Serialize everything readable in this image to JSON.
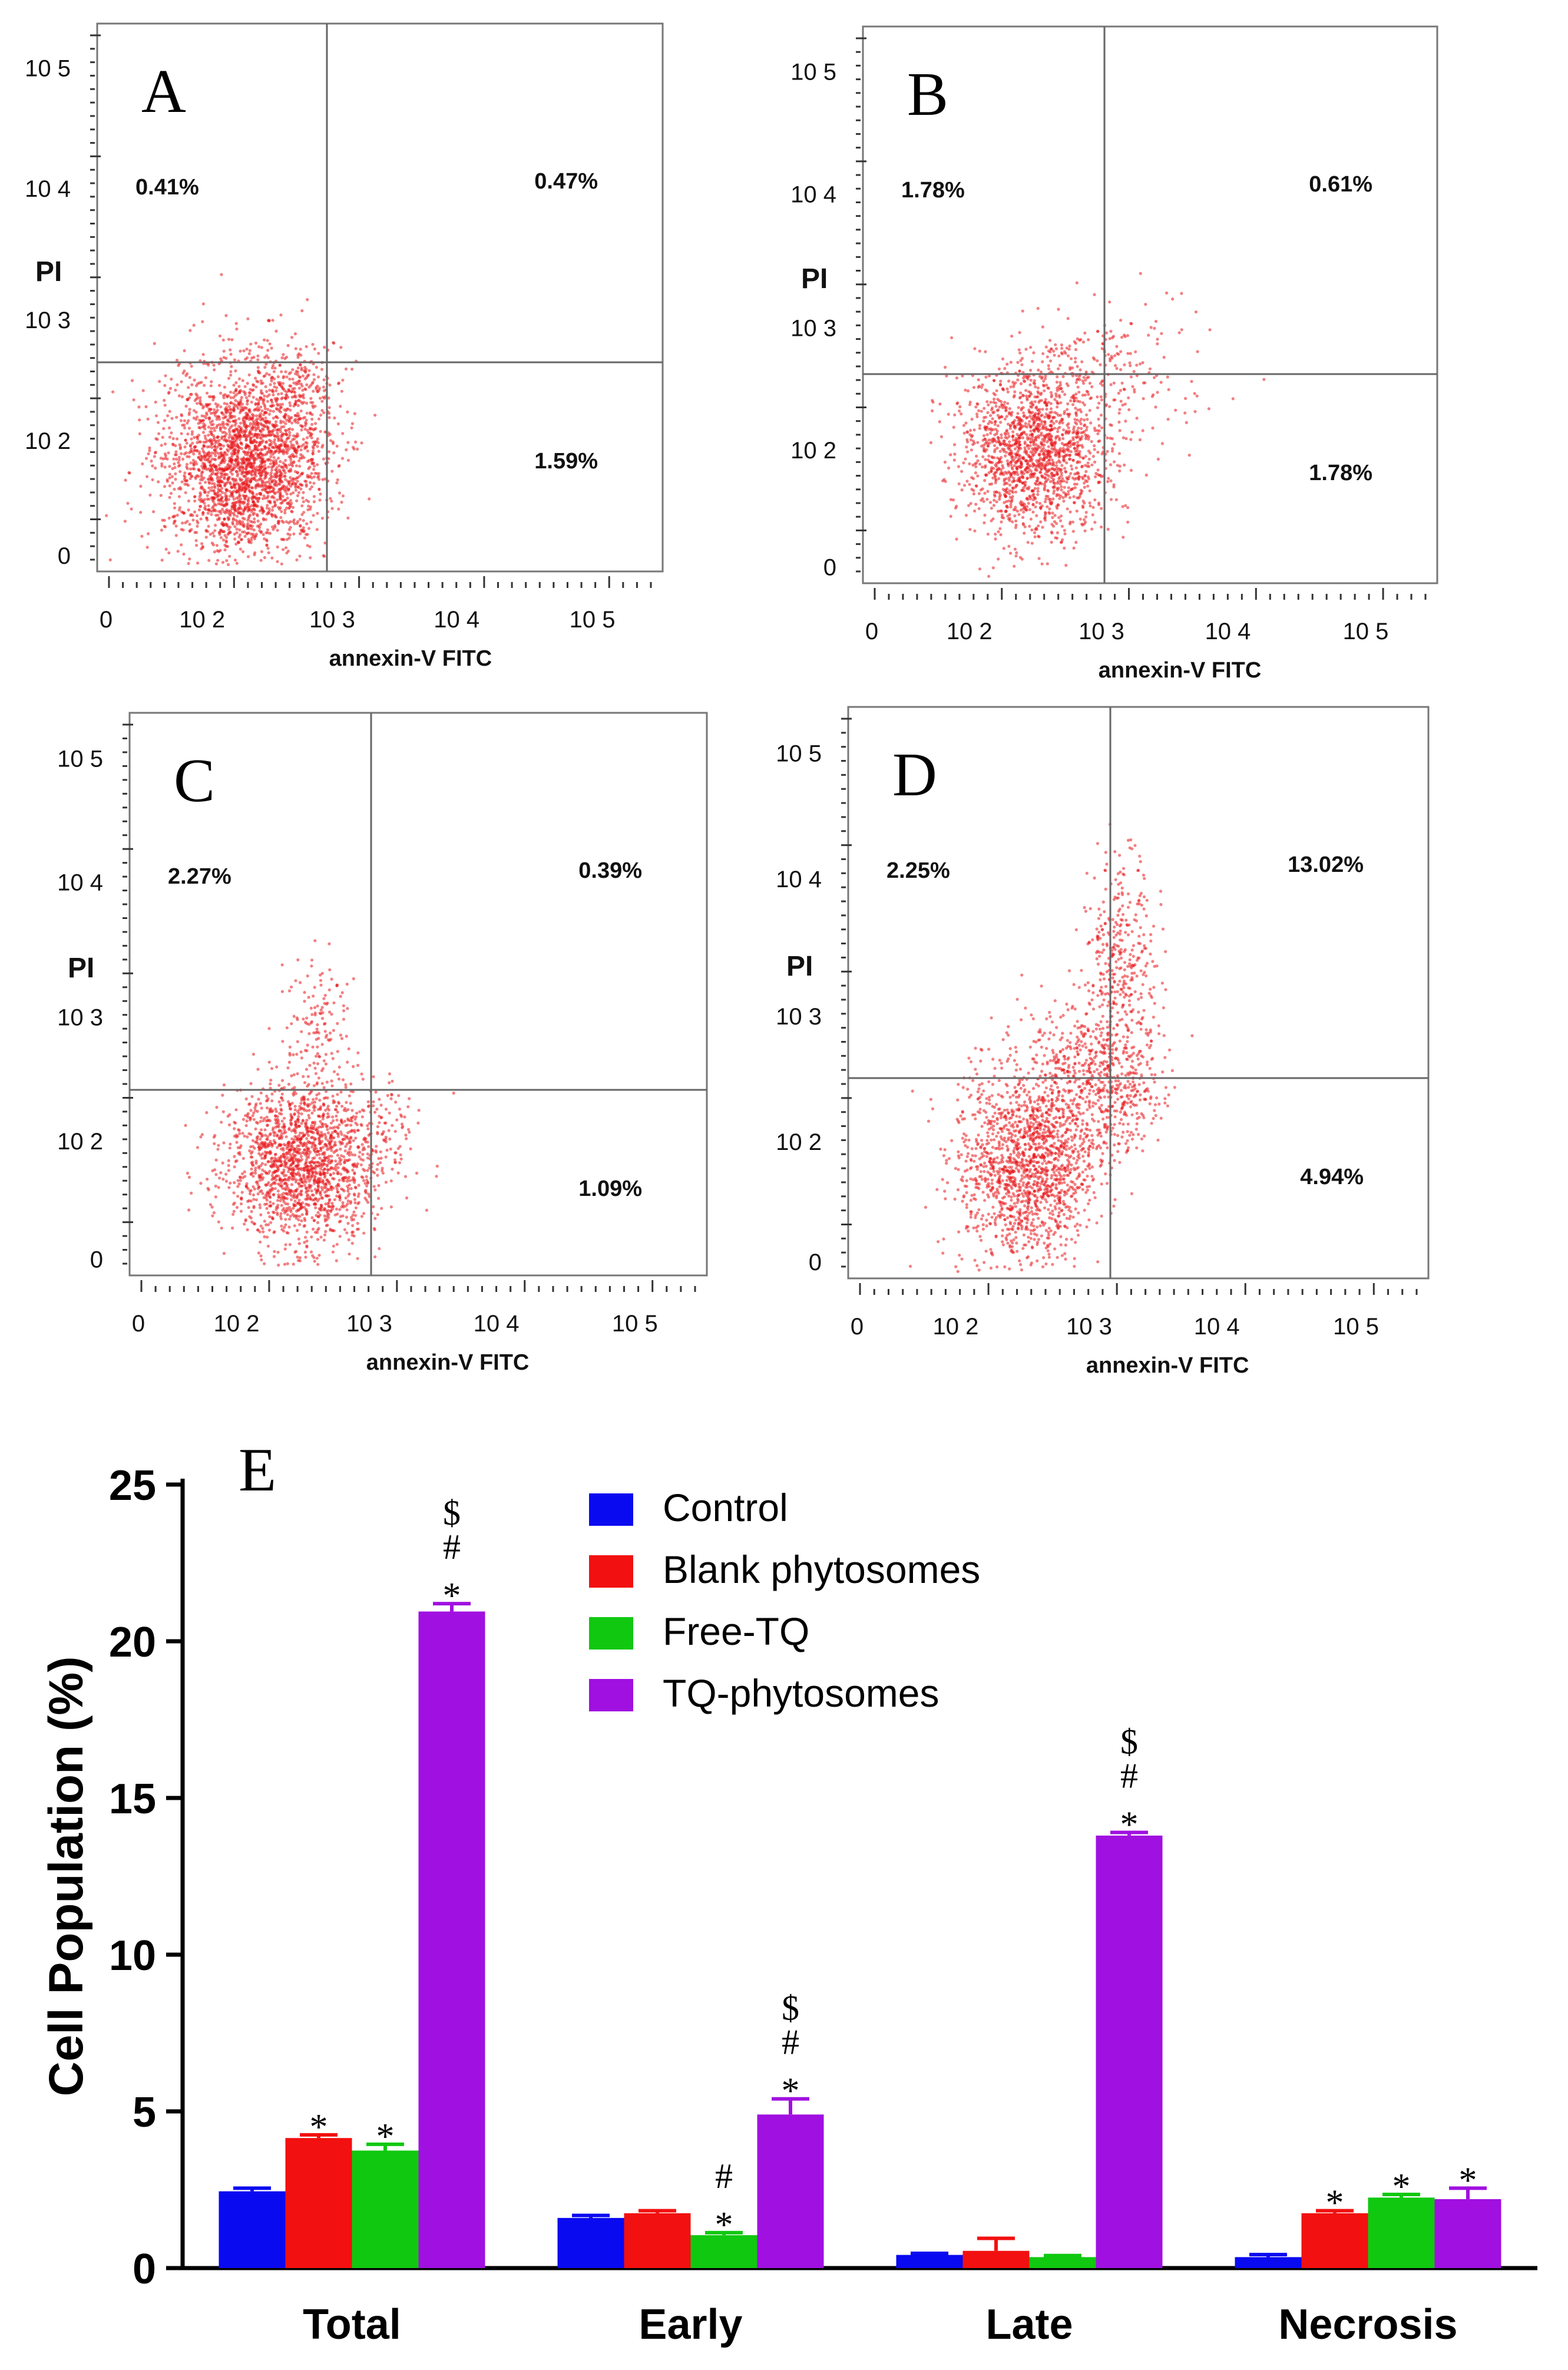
{
  "chart_data": [
    {
      "type": "scatter",
      "panel": "A",
      "xlabel": "annexin-V   FITC",
      "ylabel": "PI",
      "x_ticks": [
        "0",
        "10 2",
        "10 3",
        "10 4",
        "10 5"
      ],
      "y_ticks": [
        "0",
        "10 2",
        "10 3",
        "10 4",
        "10 5"
      ],
      "quadrants": {
        "upper_left": "0.41%",
        "upper_right": "0.47%",
        "lower_right": "1.59%"
      },
      "dot_color": "#e8191e"
    },
    {
      "type": "scatter",
      "panel": "B",
      "xlabel": "annexin-V   FITC",
      "ylabel": "PI",
      "x_ticks": [
        "0",
        "10 2",
        "10 3",
        "10 4",
        "10 5"
      ],
      "y_ticks": [
        "0",
        "10 2",
        "10 3",
        "10 4",
        "10 5"
      ],
      "quadrants": {
        "upper_left": "1.78%",
        "upper_right": "0.61%",
        "lower_right": "1.78%"
      },
      "dot_color": "#e8191e"
    },
    {
      "type": "scatter",
      "panel": "C",
      "xlabel": "annexin-V   FITC",
      "ylabel": "PI",
      "x_ticks": [
        "0",
        "10 2",
        "10 3",
        "10 4",
        "10 5"
      ],
      "y_ticks": [
        "0",
        "10 2",
        "10 3",
        "10 4",
        "10 5"
      ],
      "quadrants": {
        "upper_left": "2.27%",
        "upper_right": "0.39%",
        "lower_right": "1.09%"
      },
      "dot_color": "#e8191e"
    },
    {
      "type": "scatter",
      "panel": "D",
      "xlabel": "annexin-V   FITC",
      "ylabel": "PI",
      "x_ticks": [
        "0",
        "10 2",
        "10 3",
        "10 4",
        "10 5"
      ],
      "y_ticks": [
        "0",
        "10 2",
        "10 3",
        "10 4",
        "10 5"
      ],
      "quadrants": {
        "upper_left": "2.25%",
        "upper_right": "13.02%",
        "lower_right": "4.94%"
      },
      "dot_color": "#e8191e"
    },
    {
      "type": "bar",
      "panel": "E",
      "title": "",
      "xlabel": "",
      "ylabel": "Cell Population (%)",
      "ylim": [
        0,
        25
      ],
      "y_ticks": [
        0,
        5,
        10,
        15,
        20,
        25
      ],
      "categories": [
        "Total",
        "Early",
        "Late",
        "Necrosis"
      ],
      "series": [
        {
          "name": "Control",
          "color": "#0a0af0",
          "values": [
            2.45,
            1.6,
            0.42,
            0.35
          ],
          "errors": [
            0.1,
            0.08,
            0.05,
            0.08
          ],
          "annotations": [
            [],
            [],
            [],
            []
          ]
        },
        {
          "name": "Blank phytosomes",
          "color": "#f21010",
          "values": [
            4.15,
            1.75,
            0.55,
            1.75
          ],
          "errors": [
            0.1,
            0.08,
            0.4,
            0.08
          ],
          "annotations": [
            [
              "*"
            ],
            [],
            [],
            [
              "*"
            ]
          ]
        },
        {
          "name": "Free-TQ",
          "color": "#10c810",
          "values": [
            3.75,
            1.05,
            0.35,
            2.25
          ],
          "errors": [
            0.2,
            0.08,
            0.05,
            0.1
          ],
          "annotations": [
            [
              "*"
            ],
            [
              "*",
              "#"
            ],
            [],
            [
              "*"
            ]
          ]
        },
        {
          "name": "TQ-phytosomes",
          "color": "#a010e0",
          "values": [
            20.95,
            4.9,
            13.8,
            2.2
          ],
          "errors": [
            0.25,
            0.5,
            0.1,
            0.35
          ],
          "annotations": [
            [
              "*",
              "#",
              "$"
            ],
            [
              "*",
              "#",
              "$"
            ],
            [
              "*",
              "#",
              "$"
            ],
            [
              "*"
            ]
          ]
        }
      ],
      "panel_letter": "E"
    }
  ]
}
